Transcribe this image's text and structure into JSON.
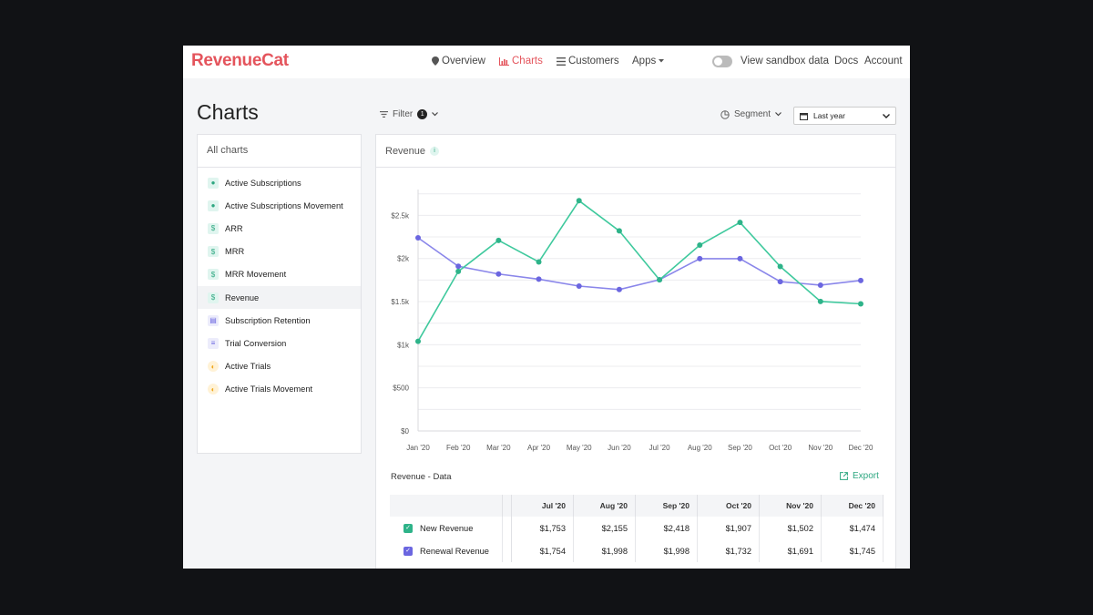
{
  "app": {
    "logo": "RevenueCat"
  },
  "nav": {
    "overview": "Overview",
    "charts": "Charts",
    "customers": "Customers",
    "apps": "Apps",
    "sandbox": "View sandbox data",
    "docs": "Docs",
    "account": "Account"
  },
  "page": {
    "title": "Charts",
    "filter_label": "Filter",
    "filter_count": "1",
    "segment_label": "Segment",
    "date_range": "Last year"
  },
  "sidebar": {
    "header": "All charts",
    "items": [
      {
        "label": "Active Subscriptions",
        "icon": "user-icon"
      },
      {
        "label": "Active Subscriptions Movement",
        "icon": "user-icon"
      },
      {
        "label": "ARR",
        "icon": "dollar-icon"
      },
      {
        "label": "MRR",
        "icon": "dollar-icon"
      },
      {
        "label": "MRR Movement",
        "icon": "dollar-icon"
      },
      {
        "label": "Revenue",
        "icon": "dollar-icon"
      },
      {
        "label": "Subscription Retention",
        "icon": "calendar-icon"
      },
      {
        "label": "Trial Conversion",
        "icon": "funnel-icon"
      },
      {
        "label": "Active Trials",
        "icon": "trial-icon"
      },
      {
        "label": "Active Trials Movement",
        "icon": "trial-icon"
      }
    ]
  },
  "panel": {
    "title": "Revenue",
    "info_icon": "i",
    "data_title": "Revenue - Data",
    "export_label": "Export"
  },
  "colors": {
    "brand": "#e4545c",
    "green": "#3fc99d",
    "purple": "#8a86ea",
    "purple_dot": "#6b66e0"
  },
  "chart_data": {
    "type": "line",
    "x": [
      "Jan '20",
      "Feb '20",
      "Mar '20",
      "Apr '20",
      "May '20",
      "Jun '20",
      "Jul '20",
      "Aug '20",
      "Sep '20",
      "Oct '20",
      "Nov '20",
      "Dec '20"
    ],
    "y_ticks": [
      "$0",
      "$500",
      "$1k",
      "$1.5k",
      "$2k",
      "$2.5k"
    ],
    "ylim": [
      0,
      2800
    ],
    "grid": true,
    "series": [
      {
        "name": "New Revenue",
        "values": [
          1040,
          1850,
          2210,
          1960,
          2670,
          2320,
          1753,
          2155,
          2418,
          1907,
          1502,
          1474
        ]
      },
      {
        "name": "Renewal Revenue",
        "values": [
          2240,
          1910,
          1820,
          1760,
          1680,
          1640,
          1754,
          1998,
          1998,
          1732,
          1691,
          1745
        ]
      }
    ]
  },
  "table": {
    "columns": [
      "Jul '20",
      "Aug '20",
      "Sep '20",
      "Oct '20",
      "Nov '20",
      "Dec '20"
    ],
    "rows": [
      {
        "name": "New Revenue",
        "values": [
          "$1,753",
          "$2,155",
          "$2,418",
          "$1,907",
          "$1,502",
          "$1,474"
        ]
      },
      {
        "name": "Renewal Revenue",
        "values": [
          "$1,754",
          "$1,998",
          "$1,998",
          "$1,732",
          "$1,691",
          "$1,745"
        ]
      }
    ]
  }
}
